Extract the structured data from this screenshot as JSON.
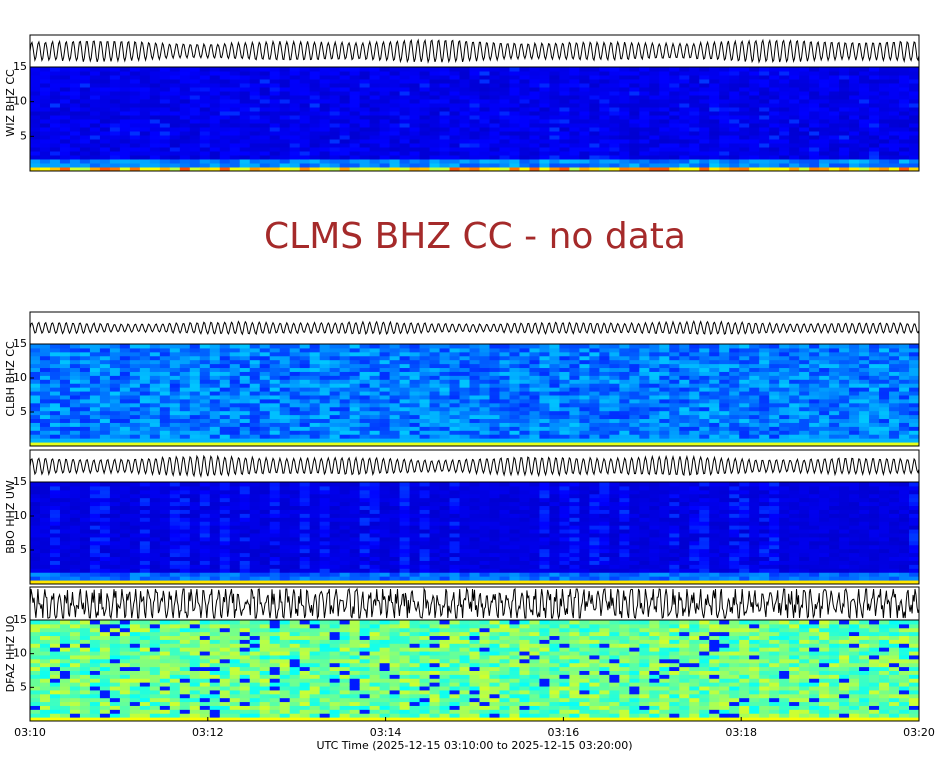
{
  "chart_data": [
    {
      "type": "spectrogram",
      "ylabel": "WIZ BHZ CC",
      "ylim": [
        0,
        15
      ],
      "yticks": [
        5,
        10,
        15
      ]
    },
    {
      "type": "no-data",
      "title": "CLMS BHZ CC - no data"
    },
    {
      "type": "spectrogram",
      "ylabel": "CLBH BHZ CC",
      "ylim": [
        0,
        15
      ],
      "yticks": [
        5,
        10,
        15
      ]
    },
    {
      "type": "spectrogram",
      "ylabel": "BBO HHZ UW",
      "ylim": [
        0,
        15
      ],
      "yticks": [
        5,
        10,
        15
      ]
    },
    {
      "type": "spectrogram",
      "ylabel": "DFAZ HHZ UO",
      "ylim": [
        0,
        15
      ],
      "yticks": [
        5,
        10,
        15
      ]
    }
  ],
  "x_axis": {
    "label": "UTC Time (2025-12-15 03:10:00 to 2025-12-15 03:20:00)",
    "ticks": [
      "03:10",
      "03:12",
      "03:14",
      "03:16",
      "03:18",
      "03:20"
    ]
  }
}
